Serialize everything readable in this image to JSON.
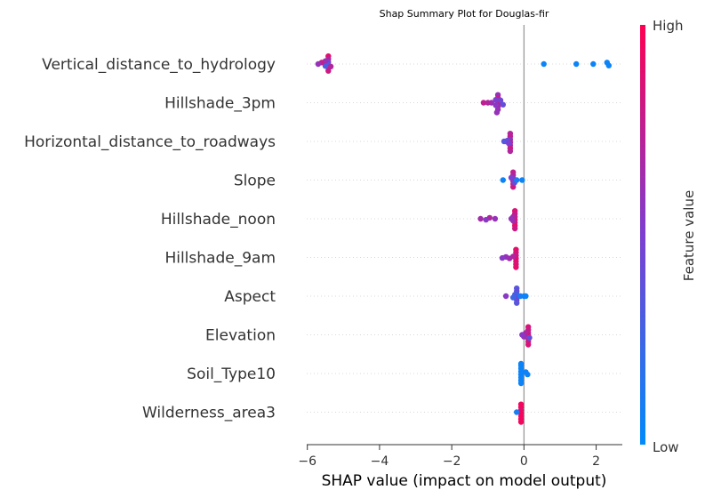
{
  "chart_data": {
    "type": "scatter",
    "subtype": "shap-beeswarm",
    "title": "Shap Summary Plot for Douglas-fir",
    "xlabel": "SHAP value (impact on model output)",
    "xlim": [
      -6.05,
      2.7
    ],
    "xticks": [
      -6,
      -4,
      -2,
      0,
      2
    ],
    "xtick_labels": [
      "−6",
      "−4",
      "−2",
      "0",
      "2"
    ],
    "colorbar": {
      "label": "Feature value",
      "high": "High",
      "low": "Low",
      "low_color": "#008bfb",
      "high_color": "#ff0052"
    },
    "features": [
      {
        "name": "Vertical_distance_to_hydrology",
        "points": [
          [
            -5.42,
            0.9,
            -0.16
          ],
          [
            -5.42,
            0.7,
            -0.1
          ],
          [
            -5.42,
            0.5,
            -0.04
          ],
          [
            -5.42,
            0.35,
            0.02
          ],
          [
            -5.42,
            0.55,
            0.08
          ],
          [
            -5.42,
            0.8,
            0.14
          ],
          [
            -5.5,
            0.6,
            -0.06
          ],
          [
            -5.5,
            0.3,
            0.04
          ],
          [
            -5.6,
            0.75,
            -0.03
          ],
          [
            -5.7,
            0.6,
            0.0
          ],
          [
            -5.35,
            0.7,
            0.05
          ],
          [
            0.55,
            0.05,
            0
          ],
          [
            1.45,
            0.05,
            0
          ],
          [
            1.92,
            0.05,
            0
          ],
          [
            2.3,
            0.05,
            -0.03
          ],
          [
            2.35,
            0.05,
            0.03
          ]
        ]
      },
      {
        "name": "Hillshade_3pm",
        "points": [
          [
            -0.72,
            0.6,
            -0.16
          ],
          [
            -0.72,
            0.75,
            -0.1
          ],
          [
            -0.72,
            0.65,
            -0.04
          ],
          [
            -0.72,
            0.8,
            0.02
          ],
          [
            -0.72,
            0.7,
            0.08
          ],
          [
            -0.72,
            0.6,
            0.14
          ],
          [
            -0.78,
            0.5,
            -0.06
          ],
          [
            -0.78,
            0.55,
            0.05
          ],
          [
            -0.65,
            0.45,
            -0.05
          ],
          [
            -0.58,
            0.4,
            0.04
          ],
          [
            -0.9,
            0.6,
            0.0
          ],
          [
            -1.0,
            0.7,
            0.0
          ],
          [
            -1.12,
            0.75,
            0.0
          ],
          [
            -0.75,
            0.6,
            0.2
          ]
        ]
      },
      {
        "name": "Horizontal_distance_to_roadways",
        "points": [
          [
            -0.38,
            0.7,
            -0.16
          ],
          [
            -0.38,
            0.75,
            -0.1
          ],
          [
            -0.38,
            0.6,
            -0.04
          ],
          [
            -0.38,
            0.7,
            0.02
          ],
          [
            -0.38,
            0.65,
            0.08
          ],
          [
            -0.38,
            0.8,
            0.14
          ],
          [
            -0.45,
            0.45,
            -0.02
          ],
          [
            -0.5,
            0.4,
            0.0
          ],
          [
            -0.55,
            0.35,
            0.0
          ],
          [
            -0.42,
            0.5,
            0.04
          ],
          [
            -0.38,
            0.7,
            0.2
          ]
        ]
      },
      {
        "name": "Slope",
        "points": [
          [
            -0.3,
            0.75,
            -0.16
          ],
          [
            -0.3,
            0.7,
            -0.1
          ],
          [
            -0.3,
            0.6,
            -0.04
          ],
          [
            -0.3,
            0.7,
            0.02
          ],
          [
            -0.3,
            0.75,
            0.08
          ],
          [
            -0.3,
            0.8,
            0.14
          ],
          [
            -0.35,
            0.5,
            -0.05
          ],
          [
            -0.26,
            0.45,
            0.05
          ],
          [
            -0.58,
            0.05,
            0.0
          ],
          [
            -0.2,
            0.1,
            0.0
          ],
          [
            -0.05,
            0.05,
            0.0
          ]
        ]
      },
      {
        "name": "Hillshade_noon",
        "points": [
          [
            -0.25,
            0.85,
            -0.16
          ],
          [
            -0.25,
            0.8,
            -0.1
          ],
          [
            -0.25,
            0.75,
            -0.04
          ],
          [
            -0.25,
            0.85,
            0.02
          ],
          [
            -0.25,
            0.8,
            0.08
          ],
          [
            -0.25,
            0.9,
            0.14
          ],
          [
            -0.3,
            0.7,
            -0.04
          ],
          [
            -0.3,
            0.65,
            0.04
          ],
          [
            -0.35,
            0.6,
            0.0
          ],
          [
            -0.8,
            0.6,
            0.0
          ],
          [
            -0.95,
            0.7,
            -0.02
          ],
          [
            -1.05,
            0.55,
            0.02
          ],
          [
            -1.2,
            0.65,
            0.0
          ],
          [
            -0.25,
            0.8,
            0.2
          ]
        ]
      },
      {
        "name": "Hillshade_9am",
        "points": [
          [
            -0.22,
            0.9,
            -0.16
          ],
          [
            -0.22,
            0.85,
            -0.1
          ],
          [
            -0.22,
            0.8,
            -0.04
          ],
          [
            -0.22,
            0.85,
            0.02
          ],
          [
            -0.22,
            0.9,
            0.08
          ],
          [
            -0.22,
            0.85,
            0.14
          ],
          [
            -0.3,
            0.7,
            -0.02
          ],
          [
            -0.4,
            0.65,
            0.02
          ],
          [
            -0.5,
            0.6,
            -0.01
          ],
          [
            -0.6,
            0.55,
            0.01
          ],
          [
            -0.22,
            0.9,
            0.2
          ]
        ]
      },
      {
        "name": "Aspect",
        "points": [
          [
            -0.2,
            0.35,
            -0.16
          ],
          [
            -0.2,
            0.4,
            -0.1
          ],
          [
            -0.2,
            0.3,
            -0.04
          ],
          [
            -0.2,
            0.5,
            0.02
          ],
          [
            -0.2,
            0.45,
            0.08
          ],
          [
            -0.2,
            0.35,
            0.14
          ],
          [
            -0.25,
            0.3,
            -0.03
          ],
          [
            -0.3,
            0.25,
            0.03
          ],
          [
            -0.5,
            0.55,
            0.0
          ],
          [
            -0.1,
            0.1,
            0.0
          ],
          [
            0.0,
            0.05,
            0.0
          ],
          [
            0.05,
            0.05,
            0.0
          ]
        ]
      },
      {
        "name": "Elevation",
        "points": [
          [
            0.12,
            0.85,
            -0.16
          ],
          [
            0.12,
            0.8,
            -0.1
          ],
          [
            0.12,
            0.75,
            -0.04
          ],
          [
            0.12,
            0.9,
            0.02
          ],
          [
            0.12,
            0.85,
            0.08
          ],
          [
            0.12,
            0.8,
            0.14
          ],
          [
            0.05,
            0.7,
            -0.04
          ],
          [
            0.0,
            0.6,
            0.04
          ],
          [
            -0.05,
            0.55,
            0.0
          ],
          [
            0.15,
            0.4,
            0.06
          ],
          [
            0.12,
            0.85,
            0.2
          ]
        ]
      },
      {
        "name": "Soil_Type10",
        "points": [
          [
            -0.08,
            0.05,
            -0.16
          ],
          [
            -0.08,
            0.05,
            -0.1
          ],
          [
            -0.08,
            0.05,
            -0.04
          ],
          [
            -0.08,
            0.05,
            0.02
          ],
          [
            -0.08,
            0.05,
            0.08
          ],
          [
            -0.08,
            0.05,
            0.14
          ],
          [
            0.05,
            0.05,
            -0.03
          ],
          [
            0.1,
            0.05,
            0.02
          ],
          [
            -0.08,
            0.05,
            0.2
          ],
          [
            -0.08,
            0.05,
            -0.2
          ]
        ]
      },
      {
        "name": "Wilderness_area3",
        "points": [
          [
            -0.08,
            0.95,
            -0.16
          ],
          [
            -0.08,
            0.95,
            -0.1
          ],
          [
            -0.08,
            0.9,
            -0.04
          ],
          [
            -0.08,
            0.95,
            0.02
          ],
          [
            -0.08,
            0.95,
            0.08
          ],
          [
            -0.08,
            0.95,
            0.14
          ],
          [
            -0.2,
            0.1,
            0.0
          ],
          [
            -0.08,
            0.95,
            0.2
          ]
        ]
      }
    ]
  }
}
